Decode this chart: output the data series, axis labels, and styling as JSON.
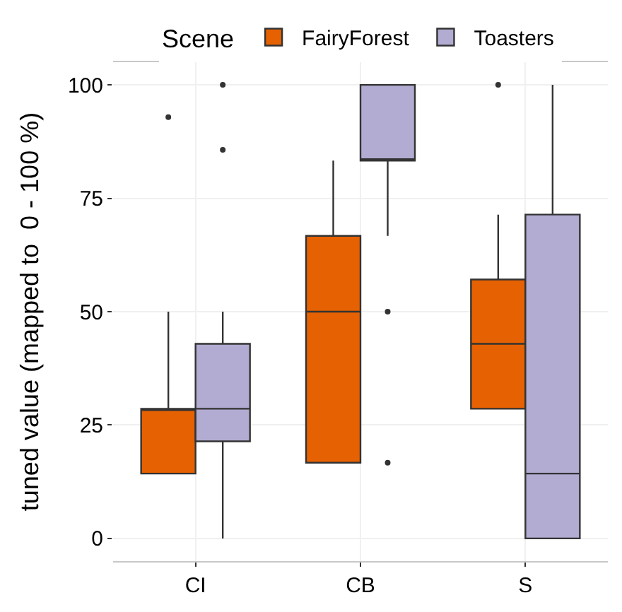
{
  "chart_data": {
    "type": "box",
    "categories": [
      "CI",
      "CB",
      "S"
    ],
    "ylabel": "tuned value (mapped to  0 - 100 %)",
    "legend_title": "Scene",
    "ylim": [
      -5,
      105
    ],
    "yticks": [
      0,
      25,
      50,
      75,
      100
    ],
    "grid": true,
    "legend": "top",
    "series": [
      {
        "name": "FairyForest",
        "color": "#e66101",
        "boxes": [
          {
            "low": 14.3,
            "q1": 14.3,
            "median": 28.6,
            "q3": 28.6,
            "high": 50,
            "outliers": [
              92.9
            ]
          },
          {
            "low": 16.7,
            "q1": 16.7,
            "median": 50,
            "q3": 66.7,
            "high": 83.3
          },
          {
            "low": 28.6,
            "q1": 28.6,
            "median": 42.9,
            "q3": 57.1,
            "high": 71.4,
            "outliers": [
              100
            ]
          }
        ]
      },
      {
        "name": "Toasters",
        "color": "#b2abd2",
        "boxes": [
          {
            "low": 0,
            "q1": 21.4,
            "median": 28.6,
            "q3": 42.9,
            "high": 50,
            "outliers": [
              100,
              85.7
            ]
          },
          {
            "low": 66.7,
            "q1": 83.3,
            "median": 83.3,
            "q3": 100,
            "high": 100,
            "outliers": [
              50,
              16.7
            ]
          },
          {
            "low": 0,
            "q1": 0,
            "median": 14.3,
            "q3": 71.4,
            "high": 100
          }
        ]
      }
    ]
  }
}
